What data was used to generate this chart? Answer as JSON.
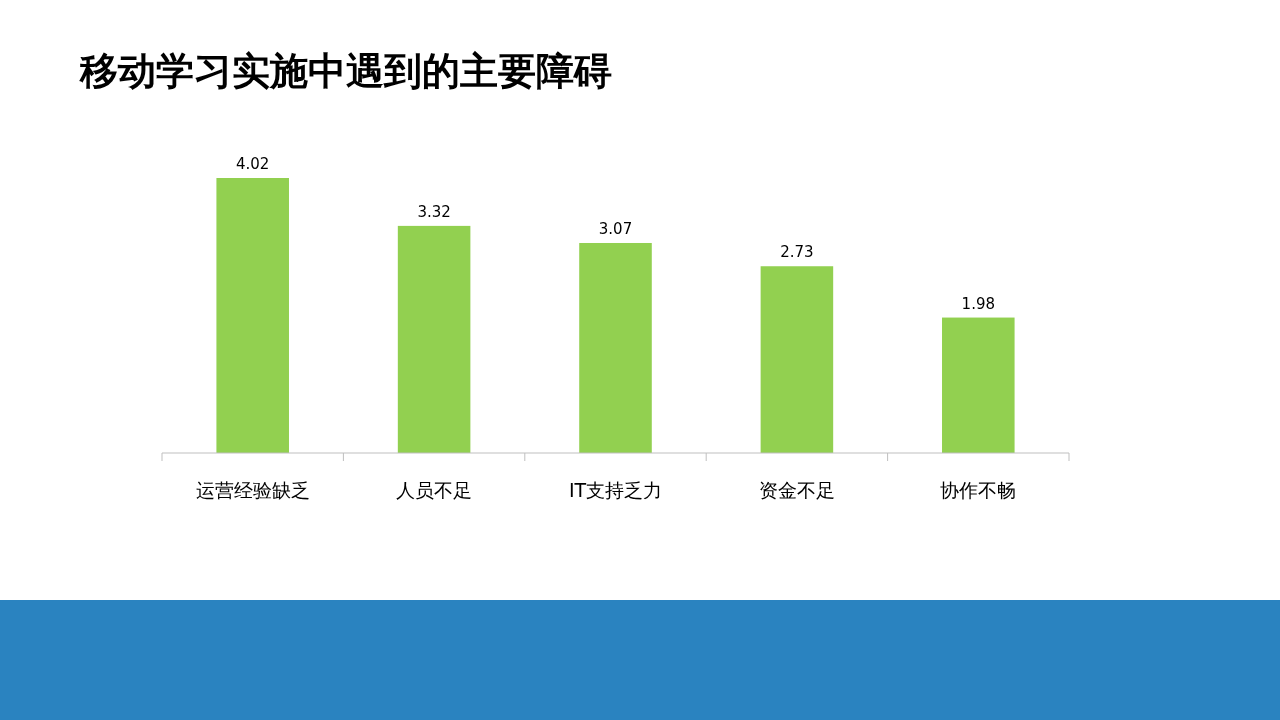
{
  "chart_data": {
    "type": "bar",
    "title": "移动学习实施中遇到的主要障碍",
    "categories": [
      "运营经验缺乏",
      "人员不足",
      "IT支持乏力",
      "资金不足",
      "协作不畅"
    ],
    "values": [
      4.02,
      3.32,
      3.07,
      2.73,
      1.98
    ],
    "color": "#92d050",
    "data_labels": true
  }
}
